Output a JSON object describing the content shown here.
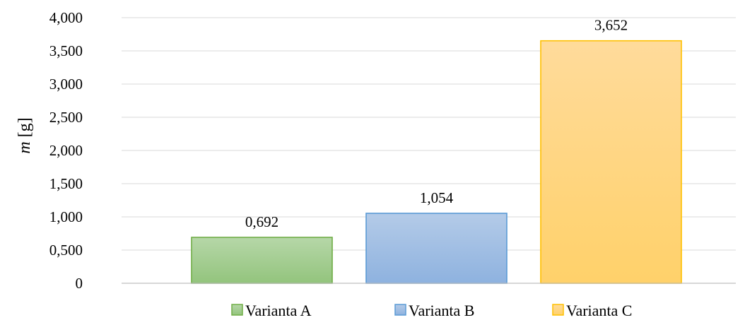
{
  "chart_data": {
    "type": "bar",
    "categories": [
      "Varianta A",
      "Varianta B",
      "Varianta C"
    ],
    "values": [
      0.692,
      1.054,
      3.652
    ],
    "data_labels": [
      "0,692",
      "1,054",
      "3,652"
    ],
    "ylabel": {
      "variable": "m",
      "unit": "[g]"
    },
    "ylim": [
      0,
      4
    ],
    "yticks": [
      0,
      0.5,
      1,
      1.5,
      2,
      2.5,
      3,
      3.5,
      4
    ],
    "ytick_labels": [
      "0",
      "0,500",
      "1,000",
      "1,500",
      "2,000",
      "2,500",
      "3,000",
      "3,500",
      "4,000"
    ],
    "grid": true,
    "legend_position": "bottom",
    "legend": [
      "Varianta A",
      "Varianta B",
      "Varianta C"
    ],
    "colors": [
      {
        "top": "#b6d7a8",
        "bottom": "#93c47d",
        "stroke": "#70ad47"
      },
      {
        "top": "#b4cbe8",
        "bottom": "#8eb2df",
        "stroke": "#5b9bd5"
      },
      {
        "top": "#ffdb9b",
        "bottom": "#ffd16a",
        "stroke": "#ffc000"
      }
    ],
    "gridline_color": "#d9d9d9"
  }
}
